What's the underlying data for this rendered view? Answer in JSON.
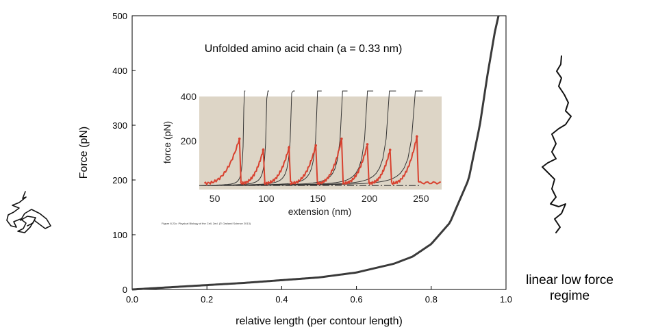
{
  "chart_data": [
    {
      "type": "line",
      "title": "Unfolded amino acid chain (a = 0.33 nm)",
      "xlabel": "relative length (per contour length)",
      "ylabel": "Force (pN)",
      "xlim": [
        0,
        1.0
      ],
      "ylim": [
        0,
        500
      ],
      "x_ticks": [
        "0.0",
        "0.2",
        "0.4",
        "0.6",
        "0.8",
        "1.0"
      ],
      "y_ticks": [
        "0",
        "100",
        "200",
        "300",
        "400",
        "500"
      ],
      "grid": false,
      "series": [
        {
          "x": [
            0.0,
            0.1,
            0.2,
            0.3,
            0.4,
            0.5,
            0.6,
            0.7,
            0.75,
            0.8,
            0.85,
            0.9,
            0.93,
            0.95,
            0.97,
            0.98
          ],
          "y": [
            0,
            4,
            8,
            12,
            17,
            22,
            31,
            47,
            60,
            83,
            122,
            201,
            300,
            390,
            470,
            500
          ]
        }
      ]
    },
    {
      "type": "line",
      "title": "",
      "xlabel": "extension (nm)",
      "ylabel": "force (pN)",
      "xlim": [
        35,
        270
      ],
      "ylim": [
        0,
        400
      ],
      "x_ticks": [
        "50",
        "100",
        "150",
        "200",
        "250"
      ],
      "y_ticks": [
        "200",
        "400"
      ],
      "caption": "Figure 8.22c: Physical Biology of the Cell, 2ed. (© Garland Science 2013)",
      "peaks": [
        {
          "x": 74,
          "y": 210
        },
        {
          "x": 97,
          "y": 160
        },
        {
          "x": 122,
          "y": 170
        },
        {
          "x": 148,
          "y": 180
        },
        {
          "x": 173,
          "y": 210
        },
        {
          "x": 198,
          "y": 185
        },
        {
          "x": 220,
          "y": 160
        },
        {
          "x": 246,
          "y": 220
        }
      ]
    }
  ],
  "annotations": {
    "right_label_line1": "linear low force",
    "right_label_line2": "regime",
    "coil_icon": "coiled-chain-icon",
    "extended_icon": "extended-chain-icon"
  },
  "colors": {
    "main_curve": "#3a3a3a",
    "inset_background": "#ddd5c6",
    "inset_data": "#d8412f",
    "inset_fit": "#333333"
  }
}
